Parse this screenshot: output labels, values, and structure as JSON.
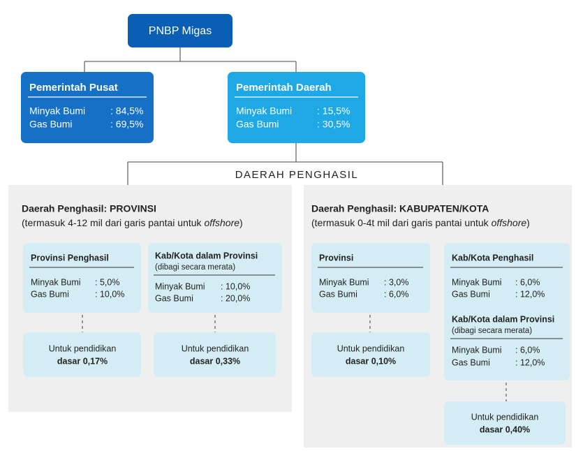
{
  "root": "PNBP Migas",
  "pusat": {
    "title": "Pemerintah Pusat",
    "rows": [
      {
        "label": "Minyak Bumi",
        "value": ": 84,5%"
      },
      {
        "label": "Gas Bumi",
        "value": ": 69,5%"
      }
    ]
  },
  "daerah": {
    "title": "Pemerintah Daerah",
    "rows": [
      {
        "label": "Minyak Bumi",
        "value": ": 15,5%"
      },
      {
        "label": "Gas Bumi",
        "value": ": 30,5%"
      }
    ]
  },
  "penghasil_label": "DAERAH PENGHASIL",
  "provinsi": {
    "heading": "Daerah Penghasil: PROVINSI",
    "note": [
      "(termasuk 4-12 mil dari garis pantai untuk ",
      "offshore",
      ")"
    ],
    "boxes": [
      {
        "title": "Provinsi Penghasil",
        "rows": [
          {
            "label": "Minyak Bumi",
            "value": ": 5,0%"
          },
          {
            "label": "Gas Bumi",
            "value": ": 10,0%"
          }
        ],
        "education": [
          "Untuk pendidikan",
          "dasar 0,17%"
        ]
      },
      {
        "title": "Kab/Kota dalam Provinsi",
        "subtitle": "(dibagi secara merata)",
        "rows": [
          {
            "label": "Minyak Bumi",
            "value": ": 10,0%"
          },
          {
            "label": "Gas Bumi",
            "value": ": 20,0%"
          }
        ],
        "education": [
          "Untuk pendidikan",
          "dasar 0,33%"
        ]
      }
    ]
  },
  "kabupaten": {
    "heading": "Daerah Penghasil: KABUPATEN/KOTA",
    "note": [
      "(termasuk 0-4t mil dari garis pantai untuk ",
      "offshore",
      ")"
    ],
    "boxes": [
      {
        "title": "Provinsi",
        "rows": [
          {
            "label": "Minyak Bumi",
            "value": ": 3,0%"
          },
          {
            "label": "Gas Bumi",
            "value": ": 6,0%"
          }
        ],
        "education": [
          "Untuk pendidikan",
          "dasar 0,10%"
        ]
      },
      {
        "title": "Kab/Kota Penghasil",
        "rows": [
          {
            "label": "Minyak Bumi",
            "value": ": 6,0%"
          },
          {
            "label": "Gas Bumi",
            "value": ": 12,0%"
          }
        ],
        "sub_title": "Kab/Kota dalam Provinsi",
        "sub_subtitle": "(dibagi secara merata)",
        "sub_rows": [
          {
            "label": "Minyak Bumi",
            "value": ": 6,0%"
          },
          {
            "label": "Gas Bumi",
            "value": ": 12,0%"
          }
        ],
        "education": [
          "Untuk pendidikan",
          "dasar 0,40%"
        ]
      }
    ]
  }
}
